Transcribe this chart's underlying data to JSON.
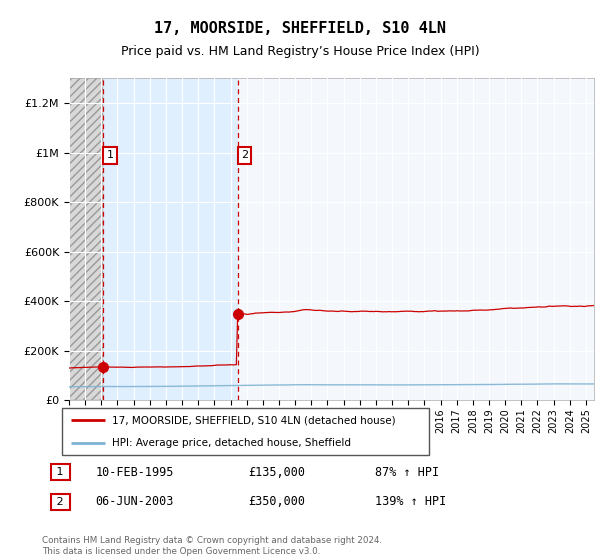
{
  "title": "17, MOORSIDE, SHEFFIELD, S10 4LN",
  "subtitle": "Price paid vs. HM Land Registry’s House Price Index (HPI)",
  "title_fontsize": 11,
  "subtitle_fontsize": 9,
  "ylim": [
    0,
    1300000
  ],
  "xlim_start": 1993.0,
  "xlim_end": 2025.5,
  "yticks": [
    0,
    200000,
    400000,
    600000,
    800000,
    1000000,
    1200000
  ],
  "ytick_labels": [
    "£0",
    "£200K",
    "£400K",
    "£600K",
    "£800K",
    "£1M",
    "£1.2M"
  ],
  "purchase1_year": 1995.12,
  "purchase1_price": 135000,
  "purchase2_year": 2003.45,
  "purchase2_price": 350000,
  "purchase1_date_str": "10-FEB-1995",
  "purchase1_pct": "87% ↑ HPI",
  "purchase2_date_str": "06-JUN-2003",
  "purchase2_pct": "139% ↑ HPI",
  "legend_line1": "17, MOORSIDE, SHEFFIELD, S10 4LN (detached house)",
  "legend_line2": "HPI: Average price, detached house, Sheffield",
  "footer": "Contains HM Land Registry data © Crown copyright and database right 2024.\nThis data is licensed under the Open Government Licence v3.0.",
  "red_color": "#cc0000",
  "blue_color": "#7fb3d3",
  "bg_hatch_face": "#d8d8d8",
  "bg_blue": "#ddeeff"
}
